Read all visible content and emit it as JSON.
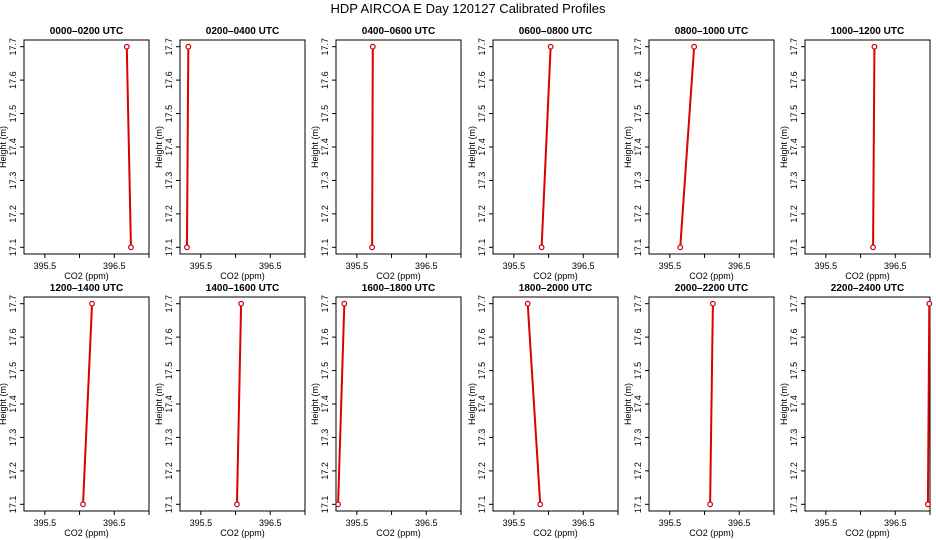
{
  "figure": {
    "title": "HDP AIRCOA E  Day 120127  Calibrated Profiles"
  },
  "style": {
    "line_color": "#dd0000",
    "marker_color": "#cc0000",
    "frame_color": "#000000"
  },
  "chart_data": [
    {
      "type": "line",
      "title": "0000–0200 UTC",
      "xlabel": "CO2 (ppm)",
      "ylabel": "Height (m)",
      "xlim": [
        395.2,
        397.0
      ],
      "ylim": [
        17.08,
        17.72
      ],
      "xticks": [
        "395.5",
        "396.5"
      ],
      "yticks": [
        "17.1",
        "17.2",
        "17.3",
        "17.4",
        "17.5",
        "17.6",
        "17.7"
      ],
      "x": [
        396.74,
        396.68
      ],
      "y": [
        17.1,
        17.7
      ]
    },
    {
      "type": "line",
      "title": "0200–0400 UTC",
      "xlabel": "CO2 (ppm)",
      "ylabel": "Height (m)",
      "xlim": [
        395.2,
        397.0
      ],
      "ylim": [
        17.08,
        17.72
      ],
      "xticks": [
        "395.5",
        "396.5"
      ],
      "yticks": [
        "17.1",
        "17.2",
        "17.3",
        "17.4",
        "17.5",
        "17.6",
        "17.7"
      ],
      "x": [
        395.3,
        395.32
      ],
      "y": [
        17.1,
        17.7
      ]
    },
    {
      "type": "line",
      "title": "0400–0600 UTC",
      "xlabel": "CO2 (ppm)",
      "ylabel": "Height (m)",
      "xlim": [
        395.2,
        397.0
      ],
      "ylim": [
        17.08,
        17.72
      ],
      "xticks": [
        "395.5",
        "396.5"
      ],
      "yticks": [
        "17.1",
        "17.2",
        "17.3",
        "17.4",
        "17.5",
        "17.6",
        "17.7"
      ],
      "x": [
        395.72,
        395.73
      ],
      "y": [
        17.1,
        17.7
      ]
    },
    {
      "type": "line",
      "title": "0600–0800 UTC",
      "xlabel": "CO2 (ppm)",
      "ylabel": "Height (m)",
      "xlim": [
        395.2,
        397.0
      ],
      "ylim": [
        17.08,
        17.72
      ],
      "xticks": [
        "395.5",
        "396.5"
      ],
      "yticks": [
        "17.1",
        "17.2",
        "17.3",
        "17.4",
        "17.5",
        "17.6",
        "17.7"
      ],
      "x": [
        395.9,
        396.03
      ],
      "y": [
        17.1,
        17.7
      ]
    },
    {
      "type": "line",
      "title": "0800–1000 UTC",
      "xlabel": "CO2 (ppm)",
      "ylabel": "Height (m)",
      "xlim": [
        395.2,
        397.0
      ],
      "ylim": [
        17.08,
        17.72
      ],
      "xticks": [
        "395.5",
        "396.5"
      ],
      "yticks": [
        "17.1",
        "17.2",
        "17.3",
        "17.4",
        "17.5",
        "17.6",
        "17.7"
      ],
      "x": [
        395.65,
        395.85
      ],
      "y": [
        17.1,
        17.7
      ]
    },
    {
      "type": "line",
      "title": "1000–1200 UTC",
      "xlabel": "CO2 (ppm)",
      "ylabel": "Height (m)",
      "xlim": [
        395.2,
        397.0
      ],
      "ylim": [
        17.08,
        17.72
      ],
      "xticks": [
        "395.5",
        "396.5"
      ],
      "yticks": [
        "17.1",
        "17.2",
        "17.3",
        "17.4",
        "17.5",
        "17.6",
        "17.7"
      ],
      "x": [
        396.18,
        396.2
      ],
      "y": [
        17.1,
        17.7
      ]
    },
    {
      "type": "line",
      "title": "1200–1400 UTC",
      "xlabel": "CO2 (ppm)",
      "ylabel": "Height (m)",
      "xlim": [
        395.2,
        397.0
      ],
      "ylim": [
        17.08,
        17.72
      ],
      "xticks": [
        "395.5",
        "396.5"
      ],
      "yticks": [
        "17.1",
        "17.2",
        "17.3",
        "17.4",
        "17.5",
        "17.6",
        "17.7"
      ],
      "x": [
        396.05,
        396.18
      ],
      "y": [
        17.1,
        17.7
      ]
    },
    {
      "type": "line",
      "title": "1400–1600 UTC",
      "xlabel": "CO2 (ppm)",
      "ylabel": "Height (m)",
      "xlim": [
        395.2,
        397.0
      ],
      "ylim": [
        17.08,
        17.72
      ],
      "xticks": [
        "395.5",
        "396.5"
      ],
      "yticks": [
        "17.1",
        "17.2",
        "17.3",
        "17.4",
        "17.5",
        "17.6",
        "17.7"
      ],
      "x": [
        396.02,
        396.08
      ],
      "y": [
        17.1,
        17.7
      ]
    },
    {
      "type": "line",
      "title": "1600–1800 UTC",
      "xlabel": "CO2 (ppm)",
      "ylabel": "Height (m)",
      "xlim": [
        395.2,
        397.0
      ],
      "ylim": [
        17.08,
        17.72
      ],
      "xticks": [
        "395.5",
        "396.5"
      ],
      "yticks": [
        "17.1",
        "17.2",
        "17.3",
        "17.4",
        "17.5",
        "17.6",
        "17.7"
      ],
      "x": [
        395.23,
        395.32
      ],
      "y": [
        17.1,
        17.7
      ]
    },
    {
      "type": "line",
      "title": "1800–2000 UTC",
      "xlabel": "CO2 (ppm)",
      "ylabel": "Height (m)",
      "xlim": [
        395.2,
        397.0
      ],
      "ylim": [
        17.08,
        17.72
      ],
      "xticks": [
        "395.5",
        "396.5"
      ],
      "yticks": [
        "17.1",
        "17.2",
        "17.3",
        "17.4",
        "17.5",
        "17.6",
        "17.7"
      ],
      "x": [
        395.88,
        395.7
      ],
      "y": [
        17.1,
        17.7
      ]
    },
    {
      "type": "line",
      "title": "2000–2200 UTC",
      "xlabel": "CO2 (ppm)",
      "ylabel": "Height (m)",
      "xlim": [
        395.2,
        397.0
      ],
      "ylim": [
        17.08,
        17.72
      ],
      "xticks": [
        "395.5",
        "396.5"
      ],
      "yticks": [
        "17.1",
        "17.2",
        "17.3",
        "17.4",
        "17.5",
        "17.6",
        "17.7"
      ],
      "x": [
        396.08,
        396.12
      ],
      "y": [
        17.1,
        17.7
      ]
    },
    {
      "type": "line",
      "title": "2200–2400 UTC",
      "xlabel": "CO2 (ppm)",
      "ylabel": "Height (m)",
      "xlim": [
        395.2,
        397.0
      ],
      "ylim": [
        17.08,
        17.72
      ],
      "xticks": [
        "395.5",
        "396.5"
      ],
      "yticks": [
        "17.1",
        "17.2",
        "17.3",
        "17.4",
        "17.5",
        "17.6",
        "17.7"
      ],
      "x": [
        396.97,
        396.99
      ],
      "y": [
        17.1,
        17.7
      ]
    }
  ]
}
